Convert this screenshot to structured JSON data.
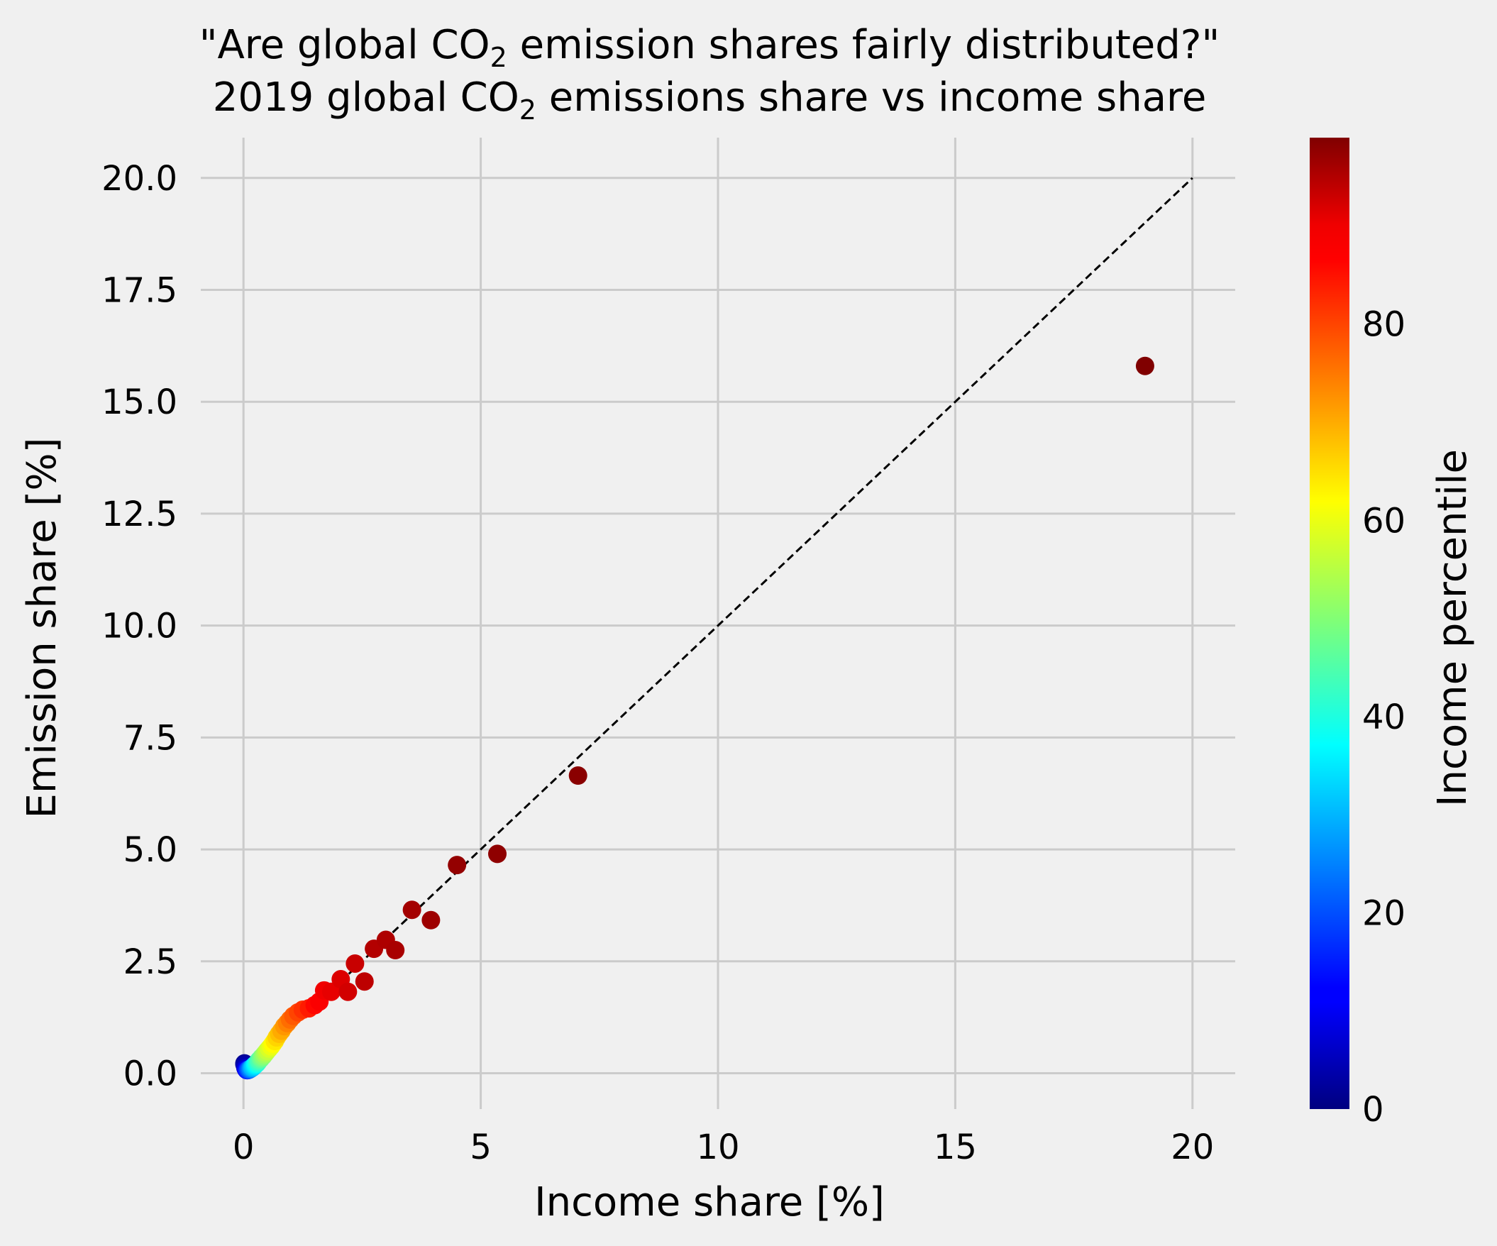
{
  "chart_data": {
    "type": "scatter",
    "title_line1": {
      "pre": "\"Are global CO",
      "sub": "2",
      "post": " emission shares fairly distributed?\""
    },
    "title_line2": {
      "pre": "2019 global CO",
      "sub": "2",
      "post": " emissions share vs income share"
    },
    "xlabel": "Income share [%]",
    "ylabel": "Emission share [%]",
    "xlim": [
      -0.9,
      20.9
    ],
    "ylim": [
      -0.8,
      20.9
    ],
    "xticks": [
      0,
      5,
      10,
      15,
      20
    ],
    "xtick_labels": [
      "0",
      "5",
      "10",
      "15",
      "20"
    ],
    "yticks": [
      0,
      2.5,
      5,
      7.5,
      10,
      12.5,
      15,
      17.5,
      20
    ],
    "ytick_labels": [
      "0.0",
      "2.5",
      "5.0",
      "7.5",
      "10.0",
      "12.5",
      "15.0",
      "17.5",
      "20.0"
    ],
    "grid": true,
    "reference_line": {
      "x": [
        0,
        20
      ],
      "y": [
        0,
        20
      ],
      "style": "dashed",
      "color": "#000000"
    },
    "colorbar": {
      "label": "Income percentile",
      "colormap": "jet",
      "range": [
        0,
        99
      ],
      "ticks": [
        0,
        20,
        40,
        60,
        80
      ],
      "tick_labels": [
        "0",
        "20",
        "40",
        "60",
        "80"
      ]
    },
    "points": [
      {
        "x": 0.02,
        "y": 0.2,
        "c": 0
      },
      {
        "x": 0.02,
        "y": 0.22,
        "c": 2
      },
      {
        "x": 0.03,
        "y": 0.18,
        "c": 4
      },
      {
        "x": 0.04,
        "y": 0.12,
        "c": 6
      },
      {
        "x": 0.05,
        "y": 0.1,
        "c": 8
      },
      {
        "x": 0.06,
        "y": 0.08,
        "c": 10
      },
      {
        "x": 0.07,
        "y": 0.07,
        "c": 12
      },
      {
        "x": 0.08,
        "y": 0.07,
        "c": 14
      },
      {
        "x": 0.09,
        "y": 0.07,
        "c": 16
      },
      {
        "x": 0.1,
        "y": 0.08,
        "c": 18
      },
      {
        "x": 0.12,
        "y": 0.08,
        "c": 20
      },
      {
        "x": 0.13,
        "y": 0.09,
        "c": 22
      },
      {
        "x": 0.15,
        "y": 0.1,
        "c": 24
      },
      {
        "x": 0.16,
        "y": 0.11,
        "c": 26
      },
      {
        "x": 0.18,
        "y": 0.12,
        "c": 28
      },
      {
        "x": 0.19,
        "y": 0.13,
        "c": 30
      },
      {
        "x": 0.21,
        "y": 0.15,
        "c": 32
      },
      {
        "x": 0.23,
        "y": 0.17,
        "c": 34
      },
      {
        "x": 0.25,
        "y": 0.19,
        "c": 36
      },
      {
        "x": 0.27,
        "y": 0.21,
        "c": 38
      },
      {
        "x": 0.29,
        "y": 0.23,
        "c": 40
      },
      {
        "x": 0.31,
        "y": 0.26,
        "c": 42
      },
      {
        "x": 0.33,
        "y": 0.29,
        "c": 44
      },
      {
        "x": 0.36,
        "y": 0.32,
        "c": 46
      },
      {
        "x": 0.38,
        "y": 0.35,
        "c": 48
      },
      {
        "x": 0.41,
        "y": 0.38,
        "c": 50
      },
      {
        "x": 0.44,
        "y": 0.42,
        "c": 52
      },
      {
        "x": 0.47,
        "y": 0.46,
        "c": 54
      },
      {
        "x": 0.5,
        "y": 0.5,
        "c": 56
      },
      {
        "x": 0.54,
        "y": 0.55,
        "c": 58
      },
      {
        "x": 0.58,
        "y": 0.6,
        "c": 60
      },
      {
        "x": 0.62,
        "y": 0.66,
        "c": 62
      },
      {
        "x": 0.66,
        "y": 0.72,
        "c": 64
      },
      {
        "x": 0.7,
        "y": 0.8,
        "c": 66
      },
      {
        "x": 0.75,
        "y": 0.88,
        "c": 68
      },
      {
        "x": 0.8,
        "y": 0.95,
        "c": 70
      },
      {
        "x": 0.86,
        "y": 1.05,
        "c": 72
      },
      {
        "x": 0.92,
        "y": 1.12,
        "c": 74
      },
      {
        "x": 0.98,
        "y": 1.2,
        "c": 76
      },
      {
        "x": 1.05,
        "y": 1.28,
        "c": 78
      },
      {
        "x": 1.15,
        "y": 1.36,
        "c": 80
      },
      {
        "x": 1.25,
        "y": 1.42,
        "c": 82
      },
      {
        "x": 1.38,
        "y": 1.45,
        "c": 84
      },
      {
        "x": 1.5,
        "y": 1.52,
        "c": 86
      },
      {
        "x": 1.6,
        "y": 1.6,
        "c": 87
      },
      {
        "x": 1.7,
        "y": 1.85,
        "c": 88
      },
      {
        "x": 1.85,
        "y": 1.82,
        "c": 89
      },
      {
        "x": 2.05,
        "y": 2.1,
        "c": 90
      },
      {
        "x": 2.2,
        "y": 1.82,
        "c": 91
      },
      {
        "x": 2.35,
        "y": 2.45,
        "c": 92
      },
      {
        "x": 2.55,
        "y": 2.05,
        "c": 93
      },
      {
        "x": 2.75,
        "y": 2.78,
        "c": 94
      },
      {
        "x": 3.0,
        "y": 2.98,
        "c": 94.5
      },
      {
        "x": 3.2,
        "y": 2.75,
        "c": 95
      },
      {
        "x": 3.55,
        "y": 3.65,
        "c": 95.5
      },
      {
        "x": 3.95,
        "y": 3.42,
        "c": 96
      },
      {
        "x": 4.5,
        "y": 4.65,
        "c": 97
      },
      {
        "x": 5.35,
        "y": 4.9,
        "c": 97.5
      },
      {
        "x": 7.05,
        "y": 6.65,
        "c": 98
      },
      {
        "x": 19.0,
        "y": 15.8,
        "c": 99
      }
    ]
  }
}
